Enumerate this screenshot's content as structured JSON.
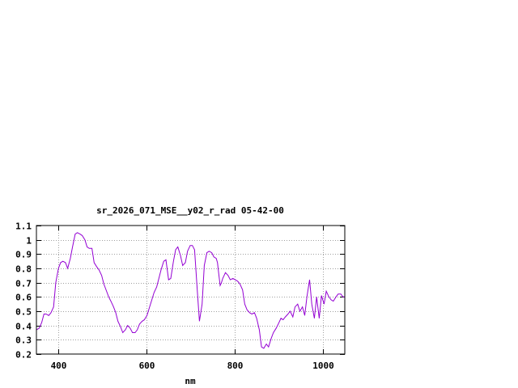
{
  "chart_data": {
    "type": "line",
    "title": "sr_2026_071_MSE__y02_r_rad 05-42-00",
    "xlabel": "nm",
    "ylabel": "",
    "xlim": [
      350,
      1050
    ],
    "ylim": [
      0.2,
      1.1
    ],
    "xticks": [
      400,
      600,
      800,
      1000
    ],
    "yticks": [
      0.2,
      0.3,
      0.4,
      0.5,
      0.6,
      0.7,
      0.8,
      0.9,
      1,
      1.1
    ],
    "grid": true,
    "line_color": "#9400d3",
    "series": [
      {
        "x": [
          350,
          356,
          362,
          367,
          372,
          378,
          383,
          389,
          394,
          400,
          405,
          410,
          416,
          421,
          427,
          432,
          438,
          443,
          449,
          454,
          460,
          465,
          470,
          476,
          481,
          487,
          492,
          498,
          503,
          508,
          514,
          519,
          525,
          530,
          535,
          541,
          546,
          552,
          557,
          563,
          568,
          574,
          579,
          584,
          590,
          595,
          601,
          606,
          612,
          617,
          623,
          628,
          633,
          639,
          644,
          650,
          655,
          661,
          666,
          671,
          677,
          682,
          688,
          693,
          699,
          704,
          709,
          715,
          720,
          726,
          731,
          737,
          742,
          748,
          753,
          758,
          761,
          764,
          767,
          770,
          773,
          776,
          779,
          785,
          790,
          796,
          801,
          807,
          812,
          818,
          823,
          828,
          834,
          839,
          845,
          850,
          856,
          861,
          866,
          872,
          877,
          883,
          888,
          894,
          899,
          905,
          910,
          915,
          921,
          926,
          932,
          937,
          943,
          948,
          954,
          959,
          964,
          970,
          975,
          981,
          986,
          992,
          997,
          1003,
          1008,
          1014,
          1019,
          1024,
          1030,
          1035,
          1041,
          1046,
          1050
        ],
        "y": [
          0.37,
          0.38,
          0.42,
          0.48,
          0.48,
          0.47,
          0.49,
          0.53,
          0.7,
          0.8,
          0.84,
          0.85,
          0.84,
          0.8,
          0.87,
          0.95,
          1.04,
          1.05,
          1.04,
          1.03,
          1.0,
          0.95,
          0.94,
          0.94,
          0.84,
          0.81,
          0.79,
          0.75,
          0.69,
          0.65,
          0.6,
          0.57,
          0.53,
          0.49,
          0.43,
          0.39,
          0.35,
          0.37,
          0.4,
          0.38,
          0.35,
          0.35,
          0.37,
          0.41,
          0.43,
          0.44,
          0.47,
          0.52,
          0.58,
          0.63,
          0.67,
          0.73,
          0.79,
          0.85,
          0.86,
          0.72,
          0.73,
          0.85,
          0.93,
          0.95,
          0.89,
          0.82,
          0.84,
          0.92,
          0.96,
          0.96,
          0.93,
          0.65,
          0.43,
          0.55,
          0.82,
          0.91,
          0.92,
          0.91,
          0.88,
          0.87,
          0.84,
          0.76,
          0.68,
          0.7,
          0.73,
          0.75,
          0.77,
          0.75,
          0.72,
          0.73,
          0.72,
          0.71,
          0.69,
          0.65,
          0.55,
          0.51,
          0.49,
          0.48,
          0.49,
          0.45,
          0.37,
          0.25,
          0.24,
          0.27,
          0.25,
          0.31,
          0.35,
          0.38,
          0.41,
          0.45,
          0.44,
          0.46,
          0.48,
          0.5,
          0.46,
          0.53,
          0.55,
          0.5,
          0.53,
          0.47,
          0.6,
          0.72,
          0.55,
          0.45,
          0.6,
          0.45,
          0.61,
          0.55,
          0.64,
          0.6,
          0.58,
          0.57,
          0.6,
          0.62,
          0.62,
          0.6,
          0.6
        ]
      }
    ]
  }
}
